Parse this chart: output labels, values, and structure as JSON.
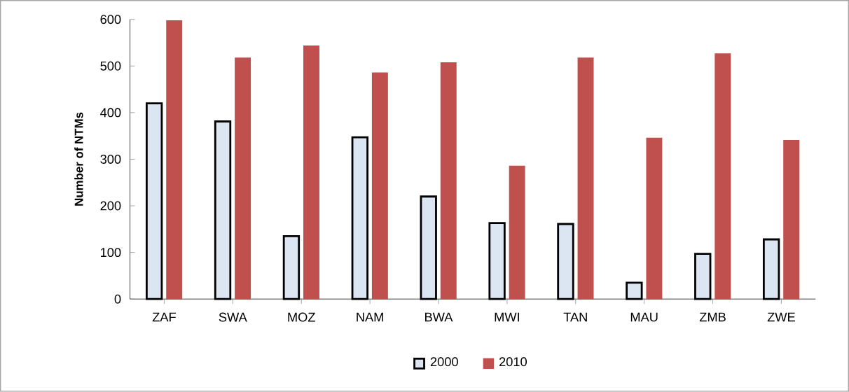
{
  "chart_data": {
    "type": "bar",
    "ylabel": "Number of NTMs",
    "categories": [
      "ZAF",
      "SWA",
      "MOZ",
      "NAM",
      "BWA",
      "MWI",
      "TAN",
      "MAU",
      "ZMB",
      "ZWE"
    ],
    "series": [
      {
        "name": "2000",
        "color": "#dce6f2",
        "values": [
          420,
          381,
          135,
          347,
          220,
          163,
          161,
          35,
          97,
          128
        ]
      },
      {
        "name": "2010",
        "color": "#c0504d",
        "values": [
          597,
          517,
          543,
          485,
          507,
          285,
          517,
          345,
          526,
          340
        ]
      }
    ],
    "ylim": [
      0,
      600
    ],
    "yticks": [
      0,
      100,
      200,
      300,
      400,
      500,
      600
    ],
    "grid": false,
    "legend": "bottom"
  }
}
